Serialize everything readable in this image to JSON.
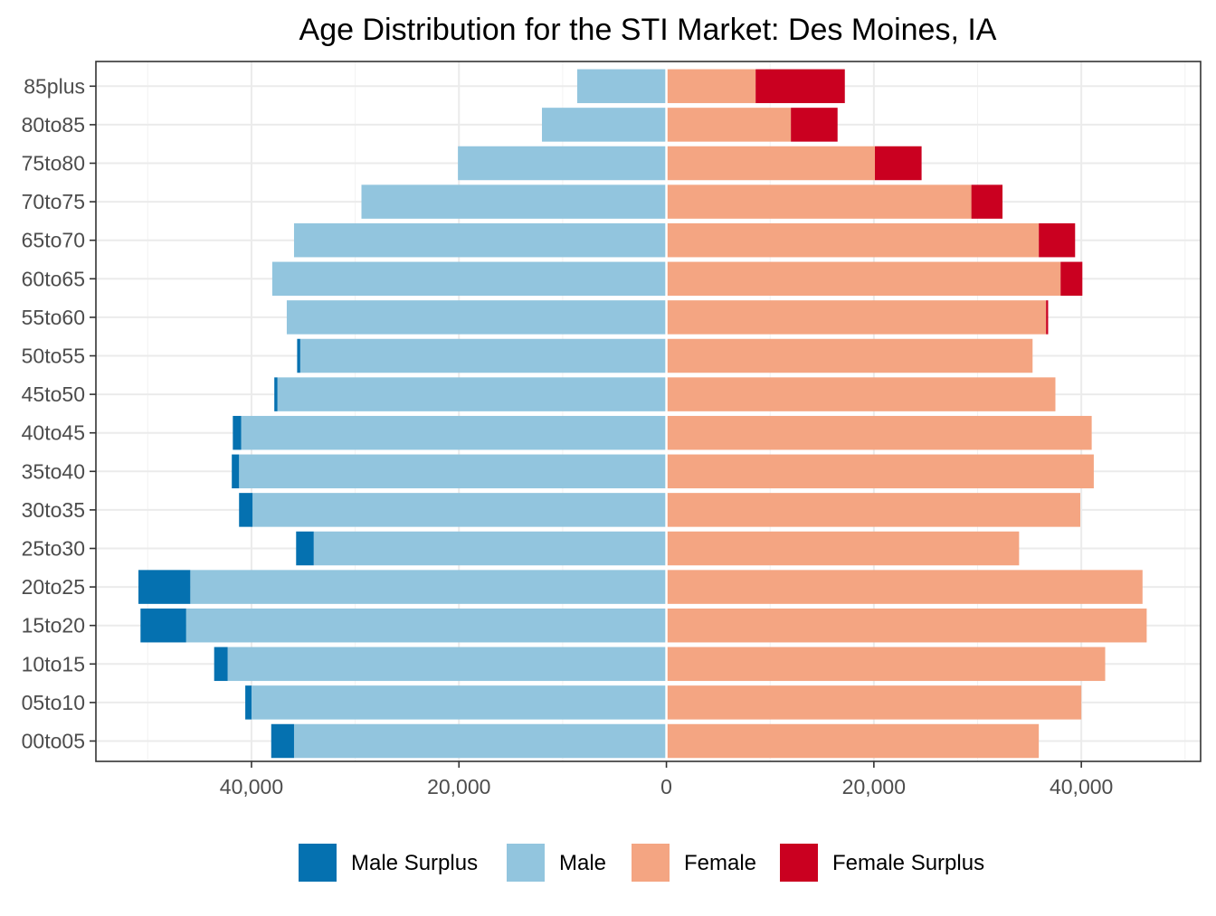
{
  "chart_data": {
    "type": "bar",
    "orientation": "horizontal",
    "layout": "population-pyramid",
    "title": "Age Distribution for the STI Market: Des Moines, IA",
    "xlabel": "",
    "ylabel": "",
    "xlim": [
      -55000,
      51500
    ],
    "x_ticks": [
      -40000,
      -20000,
      0,
      20000,
      40000
    ],
    "x_tick_labels": [
      "40,000",
      "20,000",
      "0",
      "20,000",
      "40,000"
    ],
    "grid": true,
    "legend_position": "bottom",
    "categories": [
      "00to05",
      "05to10",
      "10to15",
      "15to20",
      "20to25",
      "25to30",
      "30to35",
      "35to40",
      "40to45",
      "45to50",
      "50to55",
      "55to60",
      "60to65",
      "65to70",
      "70to75",
      "75to80",
      "80to85",
      "85plus"
    ],
    "series": [
      {
        "name": "Male Surplus",
        "color": "#0571b0",
        "side": "left",
        "values": [
          2200,
          600,
          1300,
          4400,
          5000,
          1700,
          1300,
          700,
          800,
          300,
          300,
          0,
          0,
          0,
          0,
          0,
          0,
          0
        ]
      },
      {
        "name": "Male",
        "color": "#92c5de",
        "side": "left",
        "values": [
          35900,
          40000,
          42300,
          46300,
          45900,
          34000,
          39900,
          41200,
          41000,
          37500,
          35300,
          36600,
          38000,
          35900,
          29400,
          20100,
          12000,
          8600
        ]
      },
      {
        "name": "Female",
        "color": "#f4a582",
        "side": "right",
        "values": [
          35900,
          40000,
          42300,
          46300,
          45900,
          34000,
          39900,
          41200,
          41000,
          37500,
          35300,
          36600,
          38000,
          35900,
          29400,
          20100,
          12000,
          8600
        ]
      },
      {
        "name": "Female Surplus",
        "color": "#ca0020",
        "side": "right",
        "values": [
          0,
          0,
          0,
          0,
          0,
          0,
          0,
          0,
          0,
          0,
          0,
          200,
          2100,
          3500,
          3000,
          4500,
          4500,
          8600
        ]
      }
    ]
  }
}
